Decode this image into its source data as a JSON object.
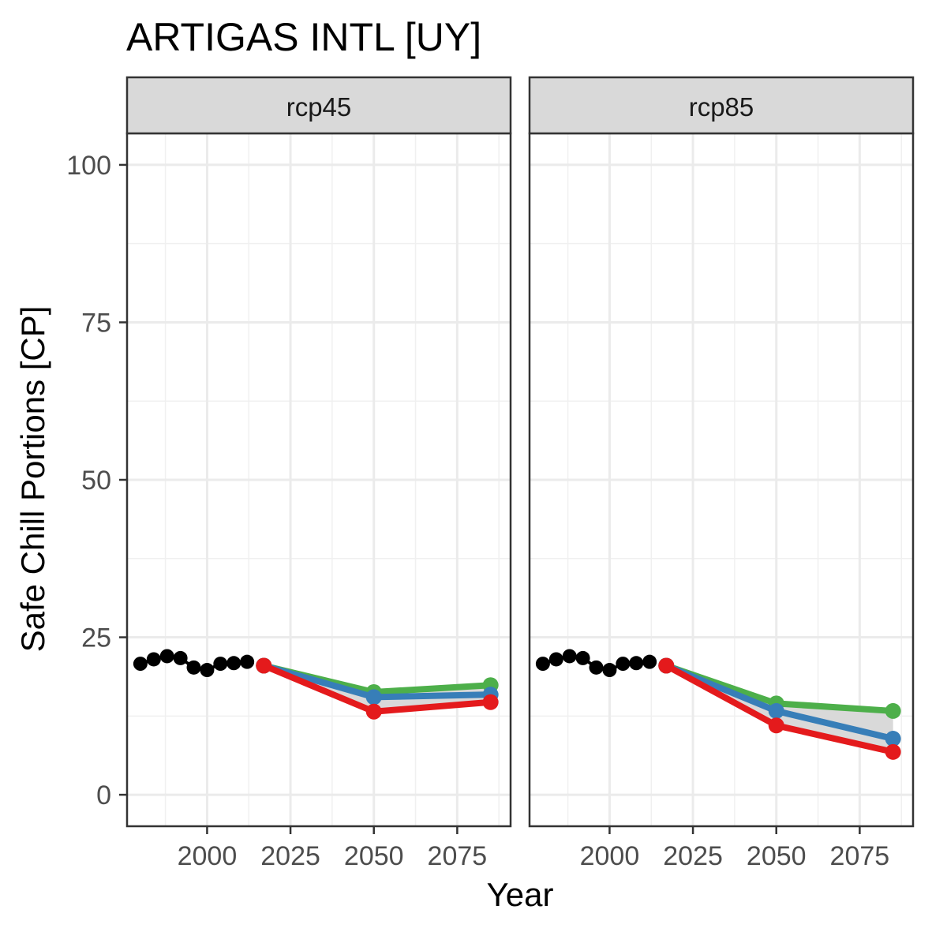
{
  "chart_data": {
    "type": "line",
    "title": "ARTIGAS INTL [UY]",
    "xlabel": "Year",
    "ylabel": "Safe Chill Portions [CP]",
    "xlim": [
      1976,
      2091
    ],
    "ylim": [
      -5,
      105
    ],
    "x_ticks": [
      2000,
      2025,
      2050,
      2075
    ],
    "y_ticks": [
      0,
      25,
      50,
      75,
      100
    ],
    "grid": true,
    "legend": "none",
    "colors": {
      "historic": "#000000",
      "optimistic": "#4DAF4A",
      "median": "#377EB8",
      "pessimistic": "#E41A1C",
      "ribbon": "#D9D9D9"
    },
    "historic": {
      "x": [
        1980,
        1984,
        1988,
        1992,
        1996,
        2000,
        2004,
        2008,
        2012
      ],
      "y": [
        20.8,
        21.5,
        22.0,
        21.7,
        20.2,
        19.8,
        20.8,
        20.9,
        21.1
      ]
    },
    "panels": [
      {
        "strip": "rcp45",
        "x": [
          2017,
          2050,
          2085
        ],
        "series": [
          {
            "name": "",
            "color_key": "optimistic",
            "values": [
              20.5,
              16.3,
              17.4
            ]
          },
          {
            "name": "",
            "color_key": "median",
            "values": [
              20.5,
              15.5,
              15.9
            ]
          },
          {
            "name": "",
            "color_key": "pessimistic",
            "values": [
              20.5,
              13.2,
              14.7
            ]
          }
        ]
      },
      {
        "strip": "rcp85",
        "x": [
          2017,
          2050,
          2085
        ],
        "series": [
          {
            "name": "",
            "color_key": "optimistic",
            "values": [
              20.5,
              14.5,
              13.3
            ]
          },
          {
            "name": "",
            "color_key": "median",
            "values": [
              20.5,
              13.3,
              8.9
            ]
          },
          {
            "name": "",
            "color_key": "pessimistic",
            "values": [
              20.5,
              11.0,
              6.8
            ]
          }
        ]
      }
    ]
  }
}
